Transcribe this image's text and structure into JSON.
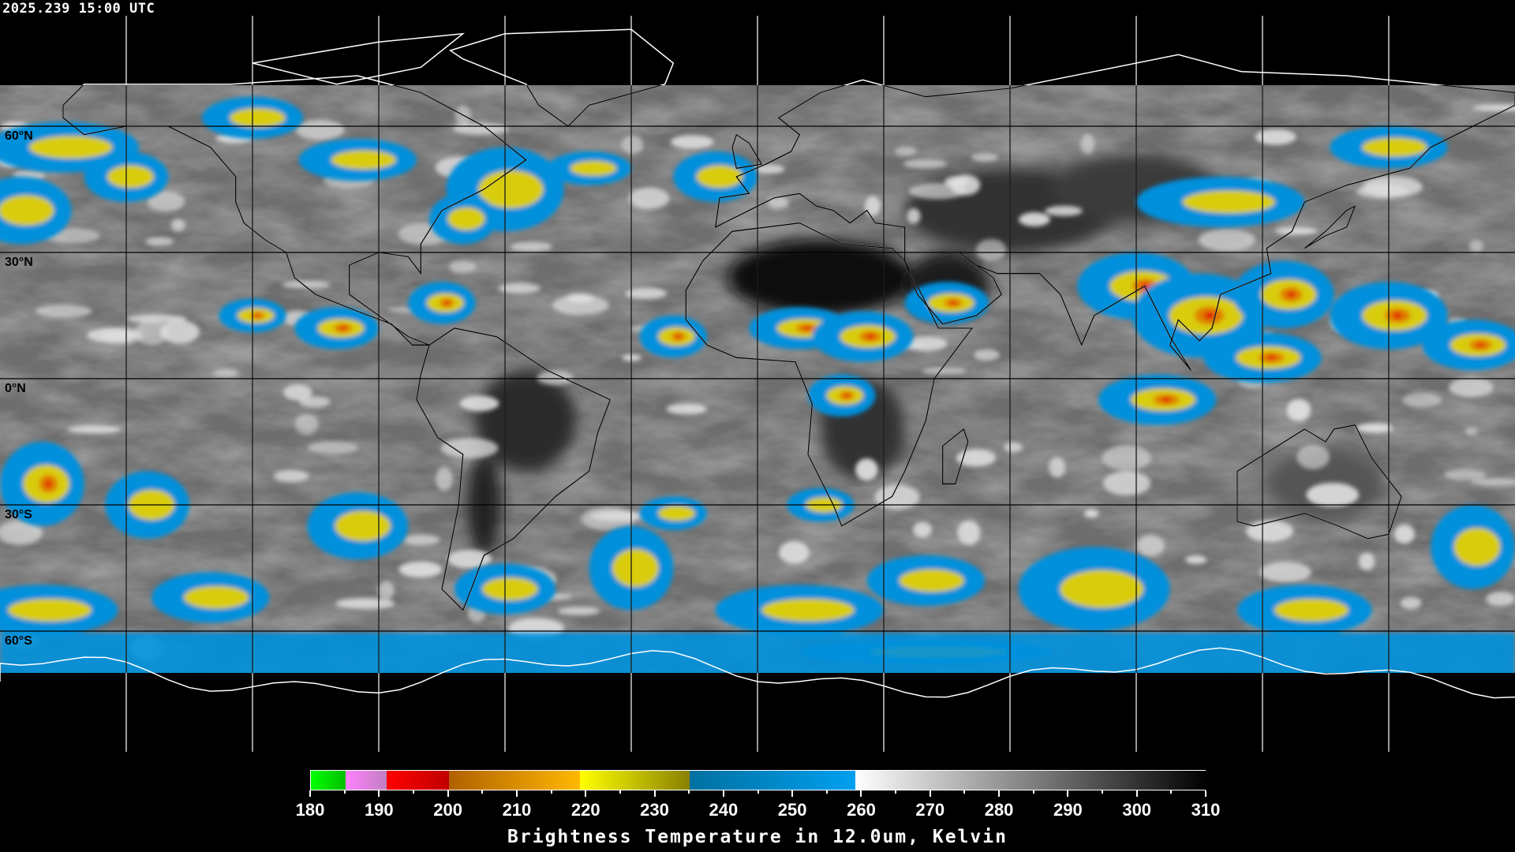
{
  "header": {
    "timestamp": "2025.239 15:00 UTC"
  },
  "map": {
    "projection": "equirectangular",
    "lon_range": [
      -180,
      180
    ],
    "lat_range": [
      -90,
      90
    ],
    "graticule_spacing_deg": 30,
    "lat_labels": [
      {
        "lat": 60,
        "text": "60°N"
      },
      {
        "lat": 30,
        "text": "30°N"
      },
      {
        "lat": 0,
        "text": "0°N"
      },
      {
        "lat": -30,
        "text": "30°S"
      },
      {
        "lat": -60,
        "text": "60°S"
      }
    ]
  },
  "colorbar": {
    "min": 180,
    "max": 310,
    "ticks": [
      "180",
      "190",
      "200",
      "210",
      "220",
      "230",
      "240",
      "250",
      "260",
      "270",
      "280",
      "290",
      "300",
      "310"
    ],
    "segments": [
      {
        "from": 180,
        "to": 185,
        "colors": [
          "#00ff00",
          "#00c000"
        ]
      },
      {
        "from": 185,
        "to": 191,
        "colors": [
          "#ff80ff",
          "#c080c0"
        ]
      },
      {
        "from": 191,
        "to": 200,
        "colors": [
          "#ff0000",
          "#c00000"
        ]
      },
      {
        "from": 200,
        "to": 219,
        "colors": [
          "#b06000",
          "#ffb800"
        ]
      },
      {
        "from": 219,
        "to": 235,
        "colors": [
          "#ffff00",
          "#888000"
        ]
      },
      {
        "from": 235,
        "to": 259,
        "colors": [
          "#0070a0",
          "#00a0f0"
        ]
      },
      {
        "from": 259,
        "to": 310,
        "colors": [
          "#ffffff",
          "#000000"
        ]
      }
    ],
    "title": "Brightness Temperature in 12.0um, Kelvin"
  }
}
